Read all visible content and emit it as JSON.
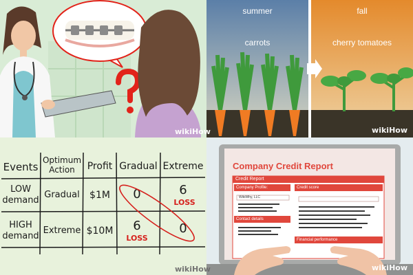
{
  "watermark": "wikiHow",
  "panel_orthodontist": {
    "colors": {
      "wall": "#d9ecd6",
      "scrubs": "#7fc6cf",
      "hair": "#5a3a2a",
      "question": "#e2231a",
      "bubble_border": "#e2231a"
    },
    "icons": [
      "braces-icon",
      "question-mark-icon",
      "clipboard-icon",
      "stethoscope-icon"
    ]
  },
  "panel_seasons": {
    "left_season": "summer",
    "left_crop": "carrots",
    "right_season": "fall",
    "right_crop": "cherry tomatoes",
    "colors": {
      "sky_summer": "#5b7fa8",
      "sky_fall": "#e48a2c",
      "carrot": "#f07b23",
      "leaf": "#3f9a3c",
      "soil": "#3a3428"
    }
  },
  "panel_table": {
    "headers": [
      "Events",
      "Optimum Action",
      "Profit",
      "Gradual",
      "Extreme"
    ],
    "rows": [
      {
        "event": "LOW demand",
        "action": "Gradual",
        "profit": "$1M",
        "gradual": "0",
        "extreme": "6",
        "extreme_note": "LOSS"
      },
      {
        "event": "HIGH demand",
        "action": "Extreme",
        "profit": "$10M",
        "gradual": "6",
        "gradual_note": "LOSS",
        "extreme": "0"
      }
    ],
    "colors": {
      "paper": "#e8f2dc",
      "ink": "#1a1a1a",
      "loss": "#d6201c"
    }
  },
  "panel_laptop": {
    "title": "Company Credit Report",
    "band": "Credit Report",
    "company_profile": "Company Profile:",
    "company_name": "WikiWhy, LLC",
    "credit_score": "Credit score",
    "contact_details": "Contact details",
    "financial_performance": "Financial performance",
    "colors": {
      "accent": "#e0473c",
      "screen_bg": "#f3e7e4",
      "laptop": "#a8aaa9",
      "skin": "#f0c3a6"
    }
  }
}
